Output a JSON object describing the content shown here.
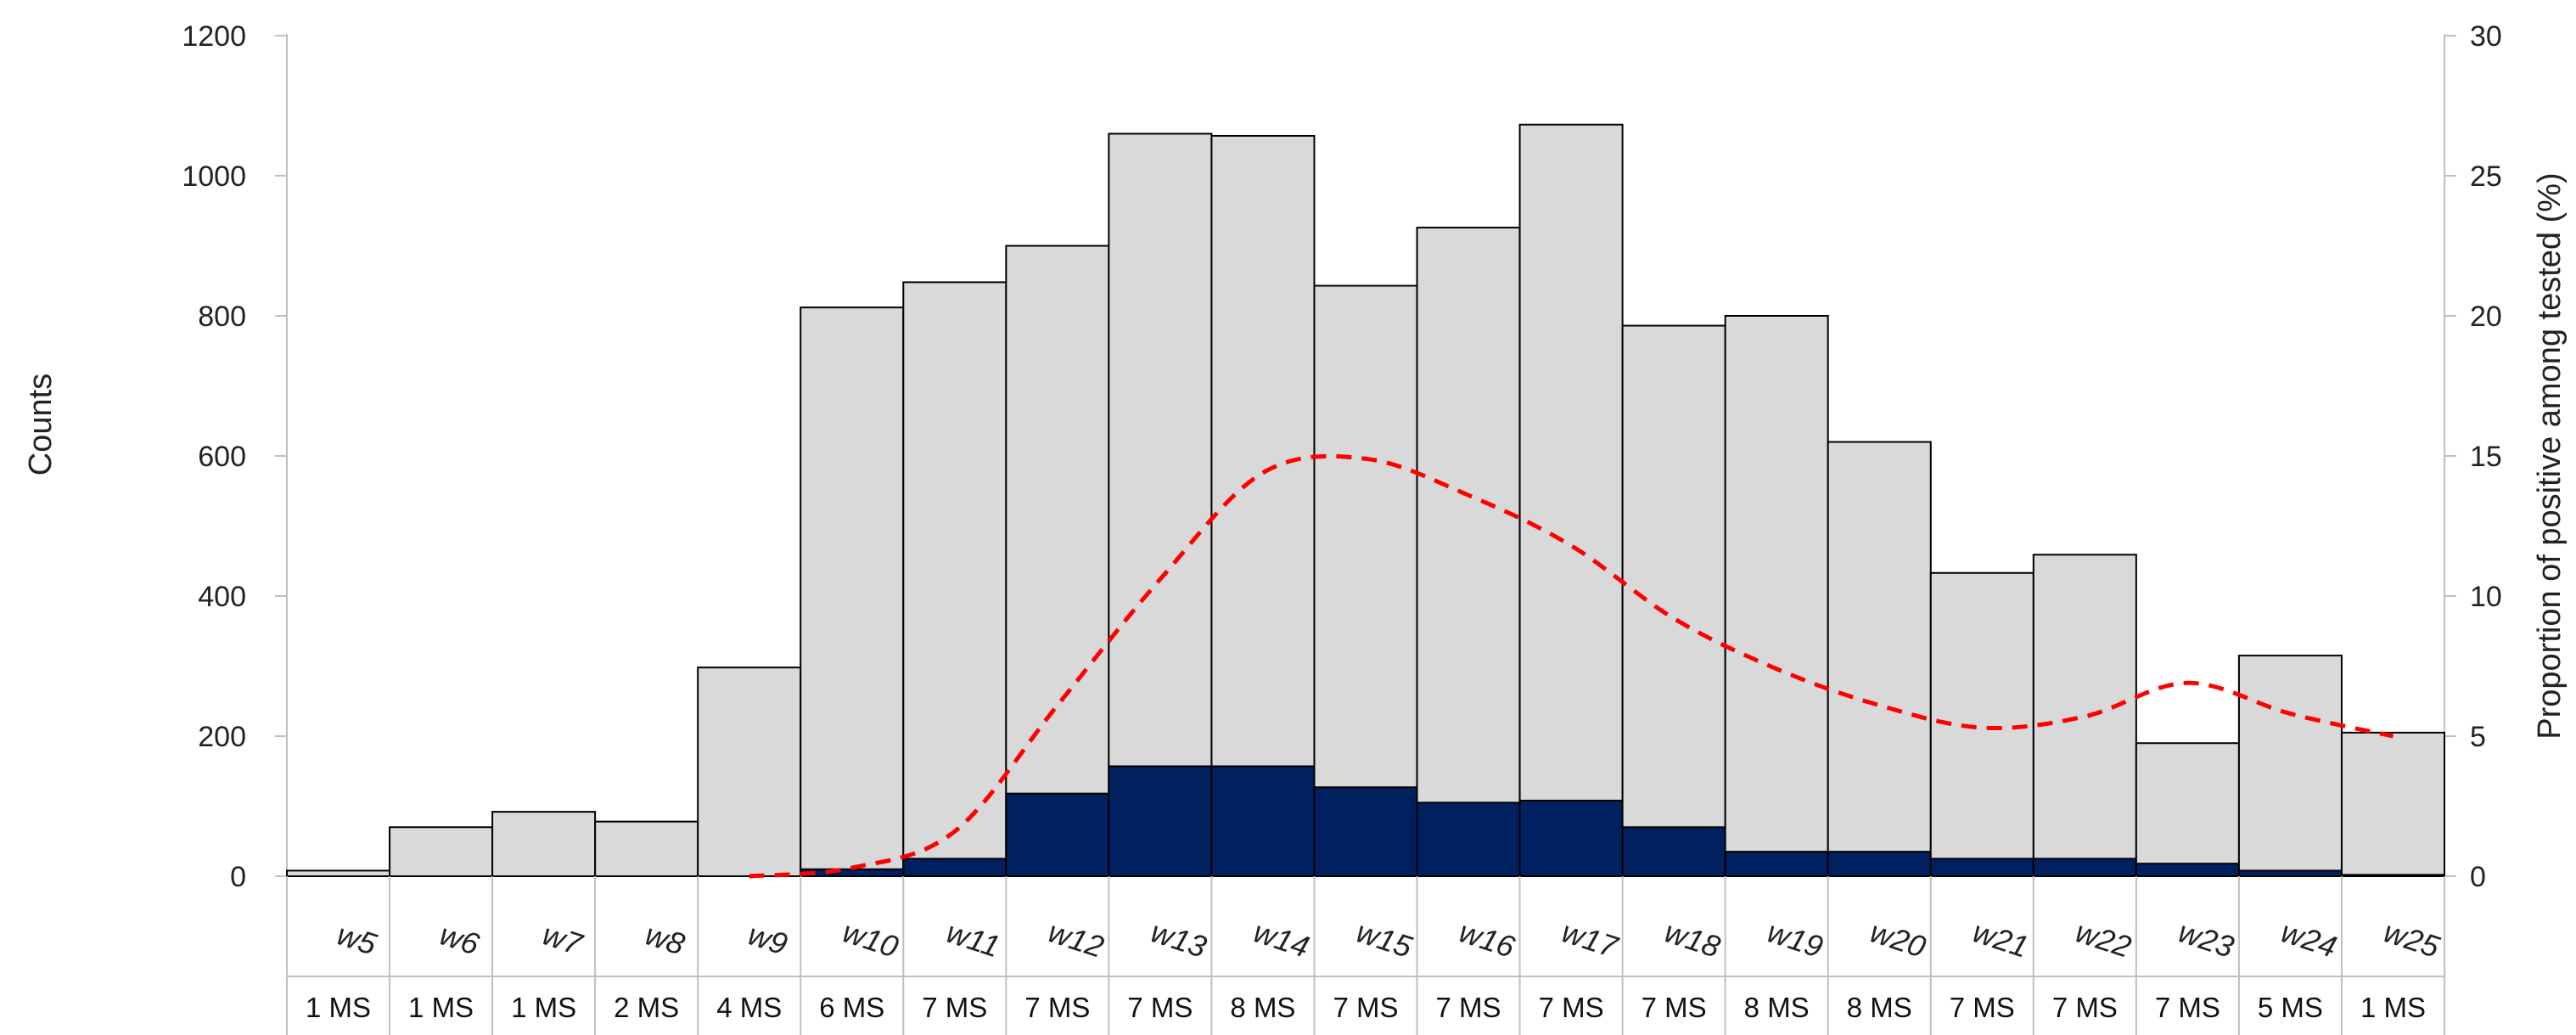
{
  "chart_data": {
    "type": "bar",
    "categories": [
      "w5",
      "w6",
      "w7",
      "w8",
      "w9",
      "w10",
      "w11",
      "w12",
      "w13",
      "w14",
      "w15",
      "w16",
      "w17",
      "w18",
      "w19",
      "w20",
      "w21",
      "w22",
      "w23",
      "w24",
      "w25"
    ],
    "ms_labels": [
      "1 MS",
      "1 MS",
      "1 MS",
      "2 MS",
      "4 MS",
      "6 MS",
      "7 MS",
      "7 MS",
      "7 MS",
      "8 MS",
      "7 MS",
      "7 MS",
      "7 MS",
      "7 MS",
      "8 MS",
      "8 MS",
      "7 MS",
      "7 MS",
      "7 MS",
      "5 MS",
      "1 MS"
    ],
    "series": [
      {
        "kind": "bar",
        "axis": "left",
        "values": [
          8,
          70,
          92,
          78,
          298,
          812,
          848,
          900,
          1060,
          1057,
          843,
          926,
          1073,
          786,
          800,
          620,
          433,
          459,
          190,
          315,
          205
        ]
      },
      {
        "kind": "bar",
        "axis": "left",
        "values": [
          0,
          0,
          0,
          0,
          0,
          10,
          25,
          118,
          157,
          157,
          127,
          105,
          108,
          70,
          35,
          35,
          25,
          25,
          18,
          8,
          2
        ]
      },
      {
        "kind": "line",
        "axis": "right",
        "style": "dashed",
        "values": [
          null,
          null,
          null,
          null,
          0,
          0.3,
          1.6,
          6.1,
          10.6,
          14.4,
          14.9,
          13.6,
          11.8,
          9.2,
          7.4,
          6.1,
          5.3,
          5.7,
          6.9,
          5.8,
          5.0
        ]
      }
    ],
    "y_left": {
      "label": "Counts",
      "min": 0,
      "max": 1200,
      "ticks": [
        0,
        200,
        400,
        600,
        800,
        1000,
        1200
      ]
    },
    "y_right": {
      "label": "Proportion of positive among tested (%)",
      "min": 0,
      "max": 30,
      "ticks": [
        0,
        5,
        10,
        15,
        20,
        25,
        30
      ]
    },
    "colors": {
      "total": "#d9d9d9",
      "positive": "#002060",
      "proportion": "#ff0000",
      "outline": "#000000"
    },
    "grid": false,
    "legend": "none"
  }
}
